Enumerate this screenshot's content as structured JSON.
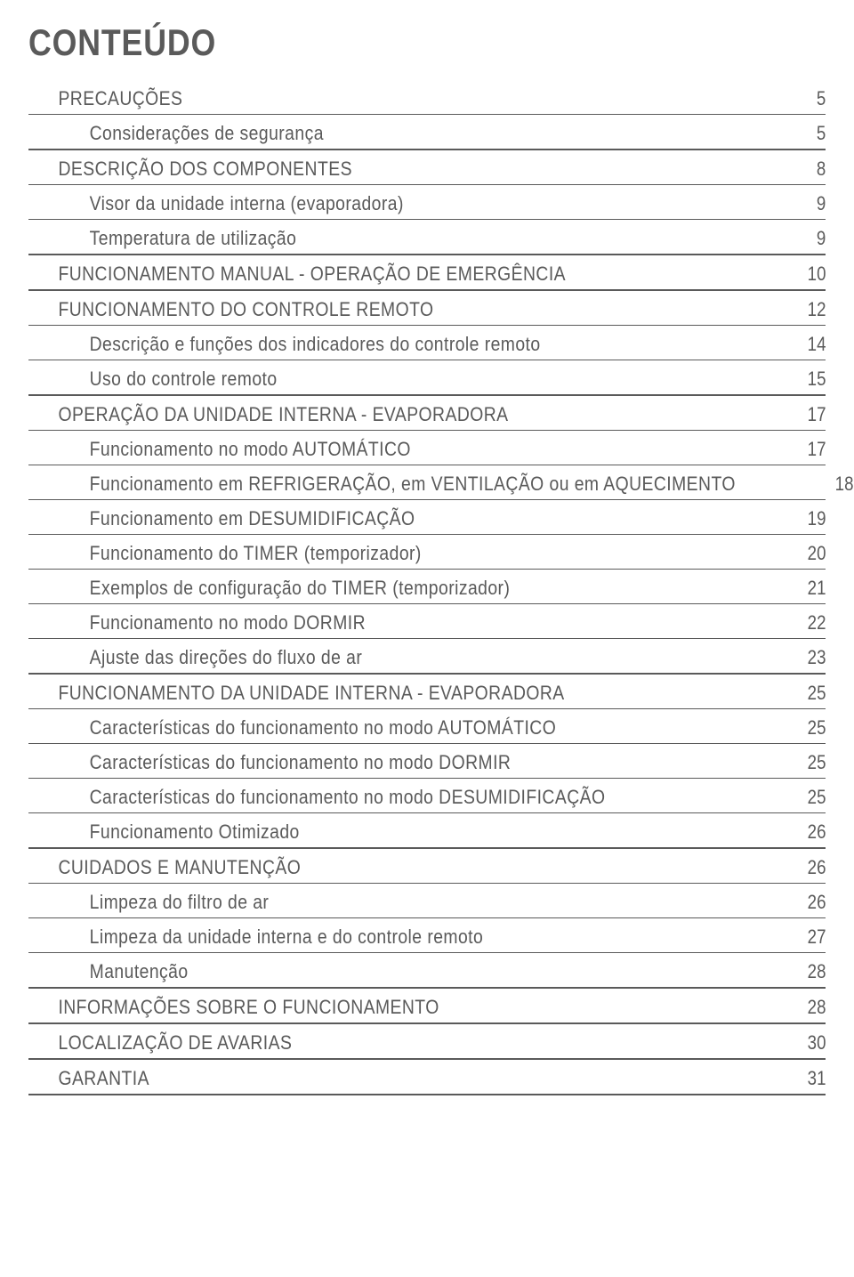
{
  "title": "CONTEÚDO",
  "text_color": "#5a5a5a",
  "background_color": "#ffffff",
  "rule_color": "#5a5a5a",
  "title_fontsize": 42,
  "row_fontsize": 22,
  "toc": [
    {
      "label": "PRECAUÇÕES",
      "page": "5",
      "indent": 0,
      "rule": "light"
    },
    {
      "label": "Considerações de segurança",
      "page": "5",
      "indent": 1,
      "rule": "heavy"
    },
    {
      "label": "DESCRIÇÃO DOS COMPONENTES",
      "page": "8",
      "indent": 0,
      "rule": "light"
    },
    {
      "label": "Visor da unidade interna (evaporadora)",
      "page": "9",
      "indent": 1,
      "rule": "light"
    },
    {
      "label": "Temperatura de utilização",
      "page": "9",
      "indent": 1,
      "rule": "heavy"
    },
    {
      "label": "FUNCIONAMENTO MANUAL - OPERAÇÃO DE EMERGÊNCIA",
      "page": "10",
      "indent": 0,
      "rule": "heavy"
    },
    {
      "label": "FUNCIONAMENTO DO CONTROLE REMOTO",
      "page": "12",
      "indent": 0,
      "rule": "light"
    },
    {
      "label": "Descrição e funções dos indicadores do controle remoto",
      "page": "14",
      "indent": 1,
      "rule": "light"
    },
    {
      "label": "Uso do controle remoto",
      "page": "15",
      "indent": 1,
      "rule": "heavy"
    },
    {
      "label": "OPERAÇÃO DA UNIDADE INTERNA - EVAPORADORA",
      "page": "17",
      "indent": 0,
      "rule": "light"
    },
    {
      "label": "Funcionamento no modo AUTOMÁTICO",
      "page": "17",
      "indent": 1,
      "rule": "light"
    },
    {
      "label": "Funcionamento em REFRIGERAÇÃO, em VENTILAÇÃO ou em AQUECIMENTO",
      "page": "18",
      "indent": 1,
      "rule": "light"
    },
    {
      "label": "Funcionamento em DESUMIDIFICAÇÃO",
      "page": "19",
      "indent": 1,
      "rule": "light"
    },
    {
      "label": "Funcionamento do TIMER (temporizador)",
      "page": "20",
      "indent": 1,
      "rule": "light"
    },
    {
      "label": "Exemplos de configuração do TIMER (temporizador)",
      "page": "21",
      "indent": 1,
      "rule": "light"
    },
    {
      "label": "Funcionamento no modo DORMIR",
      "page": "22",
      "indent": 1,
      "rule": "light"
    },
    {
      "label": "Ajuste das direções do fluxo de ar",
      "page": "23",
      "indent": 1,
      "rule": "heavy"
    },
    {
      "label": "FUNCIONAMENTO DA UNIDADE INTERNA - EVAPORADORA",
      "page": "25",
      "indent": 0,
      "rule": "light"
    },
    {
      "label": "Características do funcionamento no modo AUTOMÁTICO",
      "page": "25",
      "indent": 1,
      "rule": "light"
    },
    {
      "label": "Características do funcionamento no modo DORMIR",
      "page": "25",
      "indent": 1,
      "rule": "light"
    },
    {
      "label": "Características do funcionamento no modo DESUMIDIFICAÇÃO",
      "page": "25",
      "indent": 1,
      "rule": "light"
    },
    {
      "label": "Funcionamento Otimizado",
      "page": "26",
      "indent": 1,
      "rule": "heavy"
    },
    {
      "label": "CUIDADOS E MANUTENÇÃO",
      "page": "26",
      "indent": 0,
      "rule": "light"
    },
    {
      "label": "Limpeza do filtro de ar",
      "page": "26",
      "indent": 1,
      "rule": "light"
    },
    {
      "label": "Limpeza da unidade interna e do controle remoto",
      "page": "27",
      "indent": 1,
      "rule": "light"
    },
    {
      "label": "Manutenção",
      "page": "28",
      "indent": 1,
      "rule": "heavy"
    },
    {
      "label": "INFORMAÇÕES SOBRE O FUNCIONAMENTO",
      "page": "28",
      "indent": 0,
      "rule": "heavy"
    },
    {
      "label": "LOCALIZAÇÃO DE AVARIAS",
      "page": "30",
      "indent": 0,
      "rule": "heavy"
    },
    {
      "label": "GARANTIA",
      "page": "31",
      "indent": 0,
      "rule": "heavy"
    }
  ]
}
